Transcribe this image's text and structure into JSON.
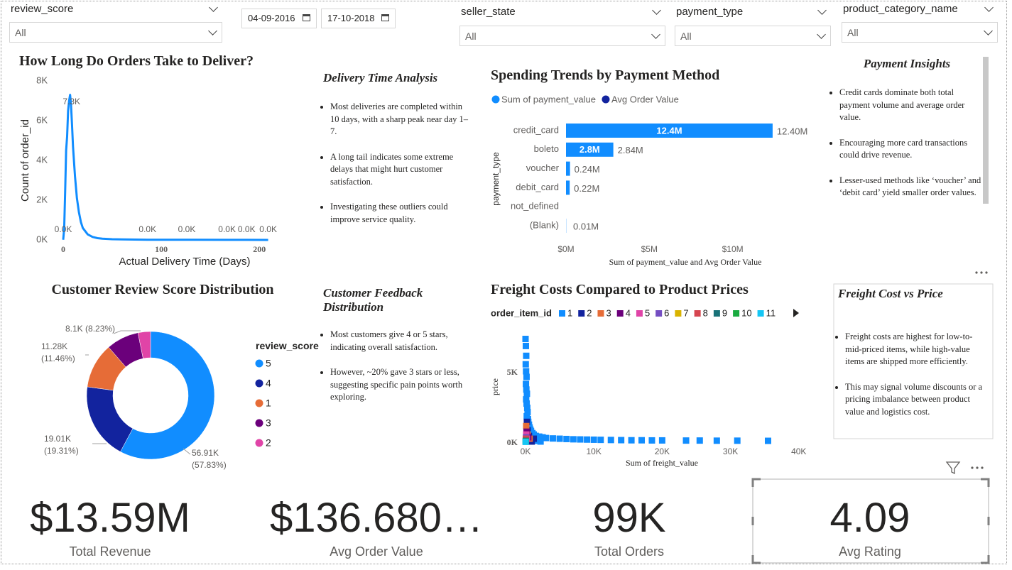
{
  "filters": [
    {
      "label": "review_score",
      "value": "All"
    },
    {
      "label": "seller_state",
      "value": "All"
    },
    {
      "label": "payment_type",
      "value": "All"
    },
    {
      "label": "product_category_name",
      "value": "All"
    }
  ],
  "date_range": {
    "start": "04-09-2016",
    "end": "17-10-2018"
  },
  "text_boxes": {
    "delivery": {
      "title": "Delivery Time Analysis",
      "bullets": [
        "Most deliveries are completed within 10 days, with a sharp peak near day 1–7.",
        " A long tail indicates some extreme delays that might hurt customer satisfaction.",
        "Investigating these outliers could improve service quality."
      ]
    },
    "payment": {
      "title": "Payment Insights",
      "bullets": [
        "Credit cards dominate both total payment volume and average order value.",
        " Encouraging more card transactions could drive revenue.",
        " Lesser-used methods like ‘voucher’ and ‘debit card’ yield smaller order values."
      ]
    },
    "feedback": {
      "title": "Customer Feedback Distribution",
      "bullets": [
        "Most customers give 4 or 5 stars, indicating overall satisfaction.",
        "However, ~20% gave 3 stars or less, suggesting specific pain points worth exploring."
      ]
    },
    "freight": {
      "title": "Freight Cost vs Price",
      "bullets": [
        "Freight costs are highest for low-to-mid-priced items, while high-value items are shipped more efficiently.",
        "This may signal volume discounts or a pricing imbalance between product value and logistics cost."
      ]
    }
  },
  "cards": [
    {
      "value": "$13.59M",
      "label": "Total Revenue"
    },
    {
      "value": "$136.680…",
      "label": "Avg Order Value"
    },
    {
      "value": "99K",
      "label": "Total Orders"
    },
    {
      "value": "4.09",
      "label": "Avg Rating"
    }
  ],
  "chart_data": [
    {
      "type": "line",
      "title": "How Long Do Orders Take to Deliver?",
      "x_label": "Actual Delivery Time (Days)",
      "y_label": "Count of order_id",
      "color": "#118dff",
      "x": [
        0,
        1,
        2,
        3,
        4,
        5,
        6,
        7,
        8,
        9,
        10,
        12,
        14,
        16,
        18,
        20,
        25,
        30,
        35,
        40,
        50,
        60,
        86,
        126,
        167,
        187,
        209
      ],
      "values": [
        10,
        600,
        2500,
        4500,
        5200,
        6500,
        7000,
        7300,
        6800,
        5800,
        4700,
        3200,
        2100,
        1400,
        900,
        600,
        280,
        150,
        90,
        60,
        35,
        25,
        12,
        6,
        3,
        2,
        1
      ],
      "value_labels": [
        "0.0K",
        null,
        null,
        null,
        null,
        null,
        null,
        "7.3K",
        null,
        null,
        null,
        null,
        null,
        null,
        null,
        null,
        null,
        null,
        null,
        null,
        null,
        null,
        "0.0K",
        "0.0K",
        "0.0K",
        "0.0K",
        "0.0K"
      ],
      "xlim": [
        0,
        210
      ],
      "xticks": [
        0,
        100,
        200
      ],
      "ylim": [
        0,
        8000
      ],
      "yticks": [
        {
          "value": 0,
          "label": "0K"
        },
        {
          "value": 2000,
          "label": "2K"
        },
        {
          "value": 4000,
          "label": "4K"
        },
        {
          "value": 6000,
          "label": "6K"
        },
        {
          "value": 8000,
          "label": "8K"
        }
      ],
      "grid": false
    },
    {
      "type": "hbar",
      "title": "Spending Trends by Payment Method",
      "x_label": "Sum of payment_value and Avg Order Value",
      "y_label": "payment_type",
      "categories": [
        "credit_card",
        "boleto",
        "voucher",
        "debit_card",
        "not_defined",
        "(Blank)"
      ],
      "series": [
        {
          "name": "Sum of payment_value",
          "color": "#118dff",
          "values": [
            12400000,
            2840000,
            240000,
            220000,
            null,
            10000
          ],
          "value_labels": [
            "12.40M",
            "2.84M",
            "0.24M",
            "0.22M",
            null,
            "0.01M"
          ],
          "inside_labels": [
            "12.4M",
            "2.8M",
            null,
            null,
            null,
            null
          ]
        },
        {
          "name": "Avg Order Value",
          "color": "#12239e",
          "values": [
            163,
            145,
            66,
            143,
            null,
            null
          ]
        }
      ],
      "xlim": [
        0,
        13000000
      ],
      "xticks": [
        {
          "value": 0,
          "label": "$0M"
        },
        {
          "value": 5000000,
          "label": "$5M"
        },
        {
          "value": 10000000,
          "label": "$10M"
        }
      ],
      "grid": false
    },
    {
      "type": "pie",
      "title": "Customer Review Score Distribution",
      "legend_title": "review_score",
      "categories": [
        "5",
        "4",
        "1",
        "3",
        "2"
      ],
      "values": [
        56910,
        19010,
        11280,
        8100,
        3120
      ],
      "value_labels": [
        "56.91K (57.83%)",
        "19.01K (19.31%)",
        "11.28K (11.46%)",
        "8.1K (8.23%)",
        null
      ],
      "colors": [
        "#118dff",
        "#12239e",
        "#e66c37",
        "#6b007b",
        "#e044a7"
      ],
      "donut": true
    },
    {
      "type": "scatter",
      "title": "Freight Costs Compared to Product Prices",
      "legend_title": "order_item_id",
      "x_label": "Sum of freight_value",
      "y_label": "price",
      "series": [
        {
          "name": "1",
          "color": "#118dff",
          "x": [
            0,
            50,
            100,
            30,
            80,
            150,
            60,
            120,
            200,
            90,
            160,
            250,
            300,
            180,
            350,
            400,
            500,
            600,
            700,
            800,
            1000,
            1200,
            1500,
            2000,
            2500,
            3000,
            4000,
            5000,
            6000,
            7000,
            8000,
            9000,
            10000,
            11000,
            12500,
            14000,
            15500,
            17000,
            18500,
            20000,
            23500,
            25500,
            28000,
            31000,
            35500,
            1800,
            2200,
            600
          ],
          "values": [
            7400,
            6900,
            6200,
            5600,
            5100,
            4700,
            4200,
            3800,
            3500,
            3100,
            2800,
            2500,
            2200,
            1900,
            1700,
            1500,
            1300,
            1100,
            950,
            850,
            700,
            600,
            500,
            450,
            400,
            350,
            320,
            300,
            280,
            260,
            250,
            240,
            230,
            220,
            210,
            200,
            190,
            190,
            180,
            180,
            170,
            170,
            160,
            160,
            150,
            150,
            100,
            200
          ]
        },
        {
          "name": "2",
          "color": "#12239e",
          "x": [
            300,
            500,
            1200,
            700,
            200,
            900
          ],
          "values": [
            900,
            500,
            300,
            200,
            1500,
            100
          ]
        },
        {
          "name": "3",
          "color": "#e66c37",
          "x": [
            100,
            300,
            600
          ],
          "values": [
            1200,
            600,
            300
          ]
        },
        {
          "name": "4",
          "color": "#6b007b",
          "x": [
            150,
            400
          ],
          "values": [
            800,
            400
          ]
        },
        {
          "name": "5",
          "color": "#e044a7",
          "x": [
            100,
            200
          ],
          "values": [
            600,
            300
          ]
        },
        {
          "name": "6",
          "color": "#744ec2",
          "x": [
            80
          ],
          "values": [
            400
          ]
        },
        {
          "name": "7",
          "color": "#d9b300",
          "x": [
            60
          ],
          "values": [
            200
          ]
        },
        {
          "name": "8",
          "color": "#d64550",
          "x": [
            50
          ],
          "values": [
            300
          ]
        },
        {
          "name": "9",
          "color": "#197278",
          "x": [
            40
          ],
          "values": [
            150
          ]
        },
        {
          "name": "10",
          "color": "#1aab40",
          "x": [
            30
          ],
          "values": [
            100
          ]
        },
        {
          "name": "11",
          "color": "#15c6f4",
          "x": [
            20
          ],
          "values": [
            80
          ]
        }
      ],
      "xlim": [
        0,
        42000
      ],
      "xticks": [
        {
          "value": 0,
          "label": "0K"
        },
        {
          "value": 10000,
          "label": "10K"
        },
        {
          "value": 20000,
          "label": "20K"
        },
        {
          "value": 30000,
          "label": "30K"
        },
        {
          "value": 40000,
          "label": "40K"
        }
      ],
      "ylim": [
        0,
        7300
      ],
      "yticks": [
        {
          "value": 0,
          "label": "0K"
        },
        {
          "value": 5000,
          "label": "5K"
        }
      ],
      "grid": false
    }
  ]
}
